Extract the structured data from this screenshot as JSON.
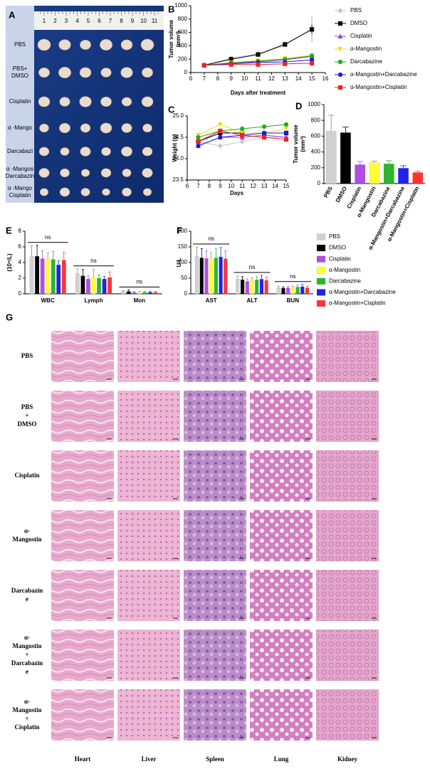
{
  "panel_labels": [
    "A",
    "B",
    "C",
    "D",
    "E",
    "F",
    "G"
  ],
  "panel_a": {
    "ruler": [
      1,
      2,
      3,
      4,
      5,
      6,
      7,
      8,
      9,
      10,
      11
    ],
    "rows": [
      [
        "PBS"
      ],
      [
        "PBS+",
        "DMSO"
      ],
      [
        "Cisplatin"
      ],
      [
        "α -Mango"
      ],
      [
        "Darcabazi"
      ],
      [
        "α -Mangos",
        "Darcabazin"
      ],
      [
        "α -Mango",
        "Cisplatin"
      ]
    ]
  },
  "chart_data": [
    {
      "type": "line",
      "y_label": [
        "Tumor volume",
        "(mm³)"
      ],
      "x_label": "Days after treatment",
      "x": [
        7,
        9,
        11,
        13,
        15
      ],
      "xlim": [
        6,
        16
      ],
      "xticks": [
        6,
        7,
        8,
        9,
        10,
        11,
        12,
        13,
        14,
        15,
        16
      ],
      "ylim": [
        0,
        1000
      ],
      "yticks": [
        0,
        200,
        400,
        600,
        800,
        1000
      ],
      "legend": "right",
      "grid": false,
      "series": [
        {
          "name": "PBS",
          "color": "#c4c4c4",
          "marker": "diamond",
          "values": [
            110,
            215,
            280,
            430,
            650
          ],
          "errors": [
            10,
            25,
            30,
            45,
            200
          ]
        },
        {
          "name": "DMSO",
          "color": "#000000",
          "marker": "square",
          "values": [
            110,
            200,
            270,
            420,
            645
          ],
          "errors": [
            10,
            20,
            25,
            30,
            70
          ]
        },
        {
          "name": "Cisplatin",
          "color": "#a040d0",
          "marker": "triangle",
          "values": [
            110,
            140,
            160,
            190,
            240
          ]
        },
        {
          "name": "α-Mangostin",
          "color": "#e8e020",
          "marker": "triangle-down",
          "values": [
            110,
            150,
            180,
            210,
            260
          ]
        },
        {
          "name": "Darcabazine",
          "color": "#22aa22",
          "marker": "circle",
          "values": [
            110,
            145,
            170,
            200,
            250
          ]
        },
        {
          "name": "α-Mangostin+Darcabazine",
          "color": "#1a1aee",
          "marker": "circle",
          "values": [
            110,
            130,
            150,
            160,
            190
          ]
        },
        {
          "name": "α-Mangostin+Cisplatin",
          "color": "#ee2222",
          "marker": "square",
          "values": [
            110,
            120,
            120,
            130,
            140
          ]
        }
      ]
    },
    {
      "type": "line",
      "y_label": "Weight (g)",
      "x_label": "Days",
      "x": [
        7,
        9,
        11,
        13,
        15
      ],
      "xlim": [
        6,
        15
      ],
      "xticks": [
        6,
        7,
        8,
        9,
        10,
        11,
        12,
        13,
        14,
        15
      ],
      "ylim": [
        23.5,
        25.0
      ],
      "yticks": [
        23.5,
        {
          "value": 24,
          "label": "24.0"
        },
        24.5,
        {
          "value": 25,
          "label": "25.0"
        }
      ],
      "legend": false,
      "grid": false,
      "series": [
        {
          "name": "PBS",
          "color": "#c4c4c4",
          "marker": "diamond",
          "values": [
            24.4,
            24.3,
            24.4,
            24.5,
            24.5
          ]
        },
        {
          "name": "DMSO",
          "color": "#000000",
          "marker": "square",
          "values": [
            24.4,
            24.6,
            24.6,
            24.6,
            24.6
          ]
        },
        {
          "name": "Cisplatin",
          "color": "#a040d0",
          "marker": "triangle",
          "values": [
            24.3,
            24.5,
            24.5,
            24.55,
            24.5
          ]
        },
        {
          "name": "α-Mangostin",
          "color": "#e8e020",
          "marker": "triangle-down",
          "values": [
            24.55,
            24.8,
            24.6,
            24.6,
            24.7
          ]
        },
        {
          "name": "Darcabazine",
          "color": "#22aa22",
          "marker": "circle",
          "values": [
            24.5,
            24.65,
            24.7,
            24.75,
            24.8
          ]
        },
        {
          "name": "α-Mangostin+Darcabazine",
          "color": "#1a1aee",
          "marker": "circle",
          "values": [
            24.3,
            24.5,
            24.55,
            24.6,
            24.6
          ]
        },
        {
          "name": "α-Mangostin+Cisplatin",
          "color": "#ee2222",
          "marker": "square",
          "values": [
            24.4,
            24.65,
            24.55,
            24.5,
            24.45
          ]
        }
      ]
    },
    {
      "type": "bar",
      "y_label": [
        "Tumor volume",
        "(mm³)"
      ],
      "categories": [
        "PBS",
        "DMSO",
        "Cisplatin",
        "α-Mangostin",
        "Darcabazine",
        "α-Mangostin+Darcabazine",
        "α-Mangostin+Cisplatin"
      ],
      "values": [
        665,
        645,
        240,
        265,
        250,
        195,
        140
      ],
      "errors": [
        200,
        70,
        40,
        20,
        40,
        30,
        15
      ],
      "colors": [
        "#d0d0d0",
        "#000000",
        "#b04ee0",
        "#ffff33",
        "#2db52d",
        "#2323e6",
        "#ff3333"
      ],
      "ylim": [
        0,
        1000
      ],
      "yticks": [
        0,
        200,
        400,
        600,
        800,
        1000
      ],
      "legend": false,
      "grid": false
    },
    {
      "type": "bar",
      "y_label": "(10⁹/L)",
      "categories": [
        "WBC",
        "Lymph",
        "Mon"
      ],
      "ylim": [
        0,
        8
      ],
      "yticks": [
        0,
        2,
        4,
        6,
        8
      ],
      "legend": false,
      "grid": false,
      "annotations": [
        "ns",
        "ns",
        "ns"
      ],
      "series": [
        {
          "name": "PBS",
          "color": "#d0d0d0",
          "values": [
            4.8,
            2.6,
            0.3
          ],
          "errors": [
            1.3,
            0.6,
            0.1
          ]
        },
        {
          "name": "DMSO",
          "color": "#000000",
          "values": [
            4.8,
            2.3,
            0.3
          ],
          "errors": [
            1.4,
            0.8,
            0.2
          ]
        },
        {
          "name": "Cisplatin",
          "color": "#b04ee0",
          "values": [
            4.5,
            1.9,
            0.2
          ],
          "errors": [
            1.0,
            0.4,
            0.1
          ]
        },
        {
          "name": "α-Mangostin",
          "color": "#ffff33",
          "values": [
            4.4,
            2.1,
            0.2
          ],
          "errors": [
            0.8,
            1.0,
            0.1
          ]
        },
        {
          "name": "Darcabazine",
          "color": "#2db52d",
          "values": [
            4.4,
            2.0,
            0.2
          ],
          "errors": [
            1.0,
            0.4,
            0.1
          ]
        },
        {
          "name": "α-Mangostin+Darcabazine",
          "color": "#2323e6",
          "values": [
            3.7,
            1.9,
            0.2
          ],
          "errors": [
            0.5,
            0.3,
            0.1
          ]
        },
        {
          "name": "α-Mangostin+Cisplatin",
          "color": "#ff3333",
          "values": [
            4.3,
            2.1,
            0.2
          ],
          "errors": [
            1.0,
            0.7,
            0.1
          ]
        }
      ]
    },
    {
      "type": "bar",
      "y_label": "U/L",
      "categories": [
        "AST",
        "ALT",
        "BUN"
      ],
      "ylim": [
        0,
        200
      ],
      "yticks": [
        0,
        50,
        100,
        150,
        200
      ],
      "legend": "right",
      "grid": false,
      "annotations": [
        "ns",
        "ns",
        "ns"
      ],
      "series": [
        {
          "name": "PBS",
          "color": "#d0d0d0",
          "values": [
            120,
            47,
            20
          ],
          "errors": [
            30,
            10,
            5
          ]
        },
        {
          "name": "DMSO",
          "color": "#000000",
          "values": [
            115,
            45,
            18
          ],
          "errors": [
            30,
            10,
            4
          ]
        },
        {
          "name": "Cisplatin",
          "color": "#b04ee0",
          "values": [
            113,
            40,
            19
          ],
          "errors": [
            25,
            8,
            4
          ]
        },
        {
          "name": "α-Mangostin",
          "color": "#ffff33",
          "values": [
            112,
            43,
            20
          ],
          "errors": [
            20,
            8,
            5
          ]
        },
        {
          "name": "Darcabazine",
          "color": "#2db52d",
          "values": [
            115,
            45,
            22
          ],
          "errors": [
            30,
            10,
            6
          ]
        },
        {
          "name": "α-Mangostin+Darcabazine",
          "color": "#2323e6",
          "values": [
            118,
            47,
            23
          ],
          "errors": [
            30,
            12,
            7
          ]
        },
        {
          "name": "α-Mangostin+Cisplatin",
          "color": "#ff3333",
          "values": [
            112,
            43,
            19
          ],
          "errors": [
            25,
            10,
            5
          ]
        }
      ]
    }
  ],
  "panel_g": {
    "rows": [
      [
        "PBS"
      ],
      [
        "PBS",
        "+",
        "DMSO"
      ],
      [
        "Cisplatin"
      ],
      [
        "α-",
        "Mangostin"
      ],
      [
        "Darcabazin",
        "e"
      ],
      [
        "α-",
        "Mangostin",
        "+",
        "Darcabazin",
        "e"
      ],
      [
        "α-",
        "Mangostin",
        "+",
        "Cisplatin"
      ]
    ],
    "columns": [
      "Heart",
      "Liver",
      "Spleen",
      "Lung",
      "Kidney"
    ]
  }
}
